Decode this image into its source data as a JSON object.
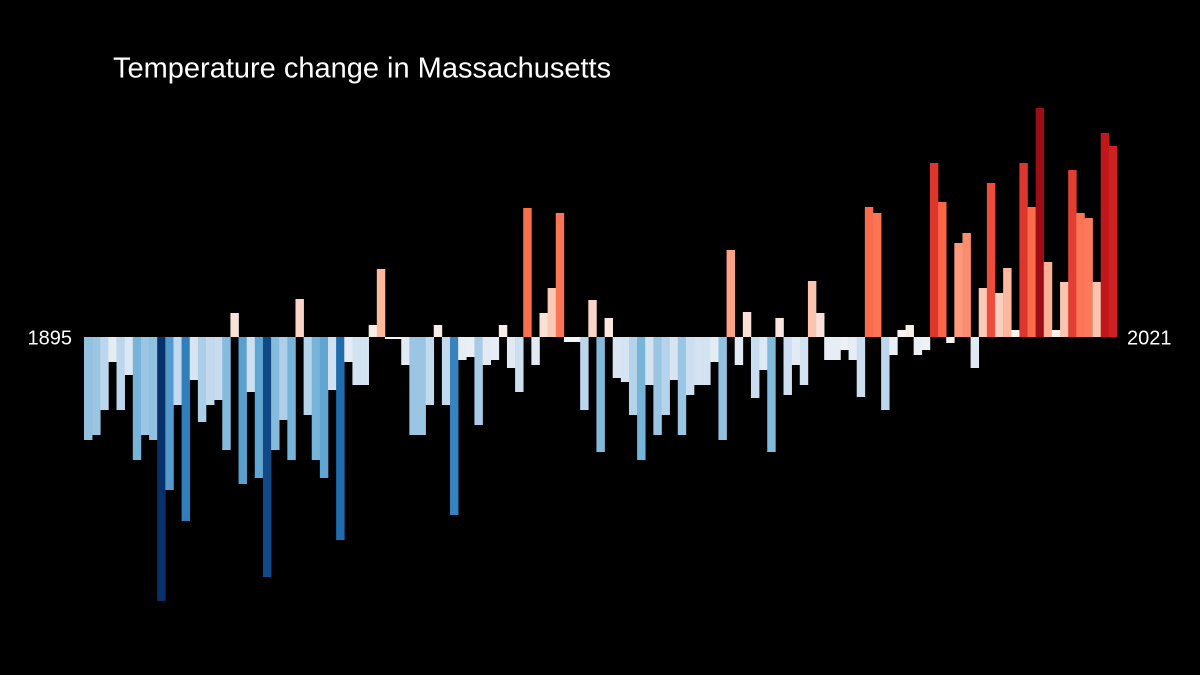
{
  "chart_data": {
    "type": "bar",
    "title": "Temperature change in Massachusetts",
    "categories": [
      "1895",
      null,
      null,
      null,
      null,
      null,
      null,
      null,
      null,
      null,
      null,
      null,
      null,
      null,
      null,
      null,
      null,
      null,
      null,
      null,
      null,
      null,
      null,
      null,
      null,
      null,
      null,
      null,
      null,
      null,
      null,
      null,
      null,
      null,
      null,
      null,
      null,
      null,
      null,
      null,
      null,
      null,
      null,
      null,
      null,
      null,
      null,
      null,
      null,
      null,
      null,
      null,
      null,
      null,
      null,
      null,
      null,
      null,
      null,
      null,
      null,
      null,
      null,
      null,
      null,
      null,
      null,
      null,
      null,
      null,
      null,
      null,
      null,
      null,
      null,
      null,
      null,
      null,
      null,
      null,
      null,
      null,
      null,
      null,
      null,
      null,
      null,
      null,
      null,
      null,
      null,
      null,
      null,
      null,
      null,
      null,
      null,
      null,
      null,
      null,
      null,
      null,
      null,
      null,
      null,
      null,
      null,
      null,
      null,
      null,
      null,
      null,
      null,
      null,
      null,
      null,
      null,
      null,
      null,
      null,
      null,
      null,
      null,
      null,
      null,
      null,
      "2021"
    ],
    "values": [
      -1.03,
      -0.98,
      -0.73,
      -0.25,
      -0.73,
      -0.38,
      -1.23,
      -0.98,
      -1.03,
      -2.64,
      -1.53,
      -0.68,
      -1.84,
      -0.43,
      -0.85,
      -0.68,
      -0.63,
      -1.13,
      0.24,
      -1.47,
      -0.55,
      -1.41,
      -2.4,
      -1.13,
      -0.83,
      -1.23,
      0.38,
      -0.78,
      -1.23,
      -1.41,
      -0.53,
      -2.03,
      -0.25,
      -0.48,
      -0.48,
      0.12,
      0.68,
      -0.02,
      -0.02,
      -0.28,
      -0.98,
      -0.98,
      -0.68,
      0.12,
      -0.68,
      -1.78,
      -0.23,
      -0.2,
      -0.88,
      -0.28,
      -0.23,
      0.12,
      -0.31,
      -0.55,
      1.29,
      -0.28,
      0.24,
      0.49,
      1.24,
      -0.05,
      -0.05,
      -0.73,
      0.37,
      -1.15,
      0.19,
      -0.41,
      -0.45,
      -0.78,
      -1.23,
      -0.48,
      -0.98,
      -0.78,
      -0.43,
      -0.98,
      -0.58,
      -0.48,
      -0.48,
      -0.25,
      -1.03,
      0.87,
      -0.28,
      0.25,
      -0.61,
      -0.33,
      -1.15,
      0.19,
      -0.58,
      -0.28,
      -0.48,
      0.56,
      0.24,
      -0.23,
      -0.23,
      -0.13,
      -0.23,
      -0.6,
      1.3,
      1.24,
      -0.73,
      -0.18,
      0.07,
      0.12,
      -0.18,
      -0.13,
      1.74,
      1.35,
      -0.06,
      0.94,
      1.04,
      -0.31,
      0.49,
      1.54,
      0.44,
      0.69,
      0.07,
      1.74,
      1.3,
      2.29,
      0.75,
      0.07,
      0.55,
      1.67,
      1.24,
      1.19,
      0.55,
      2.04,
      1.91
    ],
    "ylim": [
      -2.83,
      2.57
    ],
    "colormap": [
      "#08306b",
      "#2171b5",
      "#6baed6",
      "#c6dbef",
      "#f7f7f7",
      "#fcbba1",
      "#fb6a4a",
      "#cb181d",
      "#67000d"
    ],
    "background": "#000000"
  }
}
